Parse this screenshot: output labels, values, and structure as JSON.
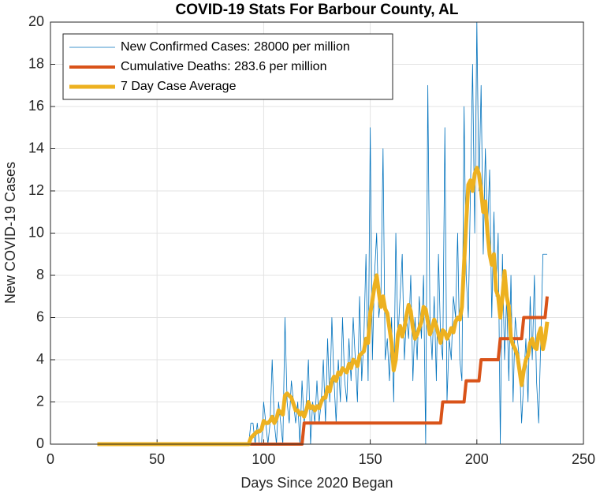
{
  "chart_data": {
    "type": "line",
    "title": "COVID-19 Stats For Barbour County, AL",
    "xlabel": "Days Since 2020 Began",
    "ylabel": "New COVID-19 Cases",
    "xlim": [
      0,
      250
    ],
    "xticks": [
      0,
      50,
      100,
      150,
      200,
      250
    ],
    "ylim": [
      0,
      20
    ],
    "yticks": [
      0,
      2,
      4,
      6,
      8,
      10,
      12,
      14,
      16,
      18,
      20
    ],
    "grid": true,
    "legend": "top-left",
    "x": [
      22,
      23,
      24,
      25,
      26,
      27,
      28,
      29,
      30,
      31,
      32,
      33,
      34,
      35,
      36,
      37,
      38,
      39,
      40,
      41,
      42,
      43,
      44,
      45,
      46,
      47,
      48,
      49,
      50,
      51,
      52,
      53,
      54,
      55,
      56,
      57,
      58,
      59,
      60,
      61,
      62,
      63,
      64,
      65,
      66,
      67,
      68,
      69,
      70,
      71,
      72,
      73,
      74,
      75,
      76,
      77,
      78,
      79,
      80,
      81,
      82,
      83,
      84,
      85,
      86,
      87,
      88,
      89,
      90,
      91,
      92,
      93,
      94,
      95,
      96,
      97,
      98,
      99,
      100,
      101,
      102,
      103,
      104,
      105,
      106,
      107,
      108,
      109,
      110,
      111,
      112,
      113,
      114,
      115,
      116,
      117,
      118,
      119,
      120,
      121,
      122,
      123,
      124,
      125,
      126,
      127,
      128,
      129,
      130,
      131,
      132,
      133,
      134,
      135,
      136,
      137,
      138,
      139,
      140,
      141,
      142,
      143,
      144,
      145,
      146,
      147,
      148,
      149,
      150,
      151,
      152,
      153,
      154,
      155,
      156,
      157,
      158,
      159,
      160,
      161,
      162,
      163,
      164,
      165,
      166,
      167,
      168,
      169,
      170,
      171,
      172,
      173,
      174,
      175,
      176,
      177,
      178,
      179,
      180,
      181,
      182,
      183,
      184,
      185,
      186,
      187,
      188,
      189,
      190,
      191,
      192,
      193,
      194,
      195,
      196,
      197,
      198,
      199,
      200,
      201,
      202,
      203,
      204,
      205,
      206,
      207,
      208,
      209,
      210,
      211,
      212,
      213,
      214,
      215,
      216,
      217,
      218,
      219,
      220,
      221,
      222,
      223,
      224,
      225,
      226,
      227,
      228,
      229,
      230,
      231,
      232,
      233
    ],
    "series": [
      {
        "name": "New Confirmed Cases: 28000 per million",
        "color": "#0072bd",
        "width": 0.8,
        "values": [
          0,
          0,
          0,
          0,
          0,
          0,
          0,
          0,
          0,
          0,
          0,
          0,
          0,
          0,
          0,
          0,
          0,
          0,
          0,
          0,
          0,
          0,
          0,
          0,
          0,
          0,
          0,
          0,
          0,
          0,
          0,
          0,
          0,
          0,
          0,
          0,
          0,
          0,
          0,
          0,
          0,
          0,
          0,
          0,
          0,
          0,
          0,
          0,
          0,
          0,
          0,
          0,
          0,
          0,
          0,
          0,
          0,
          0,
          0,
          0,
          0,
          0,
          0,
          0,
          0,
          0,
          0,
          0,
          0,
          0,
          0,
          0,
          1,
          1,
          0,
          1,
          0,
          0,
          2,
          1,
          0,
          1,
          4,
          1,
          0,
          2,
          1,
          0,
          6,
          2,
          1,
          3,
          2,
          1,
          2,
          0,
          3,
          1,
          2,
          4,
          0,
          2,
          1,
          3,
          1,
          2,
          4,
          1,
          5,
          2,
          6,
          3,
          1,
          4,
          2,
          6,
          3,
          2,
          5,
          3,
          6,
          4,
          2,
          7,
          3,
          5,
          9,
          3,
          15,
          4,
          8,
          10,
          6,
          7,
          14,
          4,
          5,
          3,
          6,
          2,
          10,
          5,
          7,
          9,
          4,
          6,
          5,
          8,
          3,
          6,
          4,
          7,
          5,
          8,
          0,
          17,
          6,
          4,
          7,
          3,
          9,
          5,
          4,
          15,
          2,
          5,
          4,
          7,
          6,
          10,
          4,
          3,
          16,
          8,
          6,
          12,
          18,
          10,
          20,
          12,
          17,
          9,
          14,
          10,
          13,
          6,
          11,
          7,
          10,
          0,
          9,
          4,
          7,
          3,
          8,
          2,
          6,
          5,
          4,
          1,
          3,
          5,
          2,
          7,
          4,
          8,
          3,
          1,
          5,
          9,
          9,
          9
        ]
      },
      {
        "name": "Cumulative Deaths: 283.6 per million",
        "color": "#d95319",
        "width": 4,
        "values": [
          0,
          0,
          0,
          0,
          0,
          0,
          0,
          0,
          0,
          0,
          0,
          0,
          0,
          0,
          0,
          0,
          0,
          0,
          0,
          0,
          0,
          0,
          0,
          0,
          0,
          0,
          0,
          0,
          0,
          0,
          0,
          0,
          0,
          0,
          0,
          0,
          0,
          0,
          0,
          0,
          0,
          0,
          0,
          0,
          0,
          0,
          0,
          0,
          0,
          0,
          0,
          0,
          0,
          0,
          0,
          0,
          0,
          0,
          0,
          0,
          0,
          0,
          0,
          0,
          0,
          0,
          0,
          0,
          0,
          0,
          0,
          0,
          0,
          0,
          0,
          0,
          0,
          0,
          0,
          0,
          0,
          0,
          0,
          0,
          0,
          0,
          0,
          0,
          0,
          0,
          0,
          0,
          0,
          0,
          0,
          0,
          0,
          1,
          1,
          1,
          1,
          1,
          1,
          1,
          1,
          1,
          1,
          1,
          1,
          1,
          1,
          1,
          1,
          1,
          1,
          1,
          1,
          1,
          1,
          1,
          1,
          1,
          1,
          1,
          1,
          1,
          1,
          1,
          1,
          1,
          1,
          1,
          1,
          1,
          1,
          1,
          1,
          1,
          1,
          1,
          1,
          1,
          1,
          1,
          1,
          1,
          1,
          1,
          1,
          1,
          1,
          1,
          1,
          1,
          1,
          1,
          1,
          1,
          1,
          1,
          1,
          1,
          2,
          2,
          2,
          2,
          2,
          2,
          2,
          2,
          2,
          2,
          2,
          3,
          3,
          3,
          3,
          3,
          3,
          3,
          4,
          4,
          4,
          4,
          4,
          4,
          4,
          4,
          4,
          5,
          5,
          5,
          5,
          5,
          5,
          5,
          5,
          5,
          5,
          5,
          6,
          6,
          6,
          6,
          6,
          6,
          6,
          6,
          6,
          6,
          6,
          7
        ]
      },
      {
        "name": "7 Day Case Average",
        "color": "#edb120",
        "width": 5,
        "values": [
          0,
          0,
          0,
          0,
          0,
          0,
          0,
          0,
          0,
          0,
          0,
          0,
          0,
          0,
          0,
          0,
          0,
          0,
          0,
          0,
          0,
          0,
          0,
          0,
          0,
          0,
          0,
          0,
          0,
          0,
          0,
          0,
          0,
          0,
          0,
          0,
          0,
          0,
          0,
          0,
          0,
          0,
          0,
          0,
          0,
          0,
          0,
          0,
          0,
          0,
          0,
          0,
          0,
          0,
          0,
          0,
          0,
          0,
          0,
          0,
          0,
          0,
          0,
          0,
          0,
          0,
          0,
          0,
          0,
          0,
          0,
          0,
          0.3,
          0.4,
          0.5,
          0.6,
          0.6,
          0.7,
          1.1,
          1.0,
          1.0,
          1.1,
          1.3,
          1.0,
          1.2,
          1.6,
          1.5,
          1.4,
          2.3,
          2.4,
          2.3,
          2.2,
          1.9,
          1.6,
          1.6,
          1.4,
          1.5,
          1.3,
          1.6,
          2.0,
          1.7,
          1.8,
          1.6,
          1.8,
          1.7,
          2.0,
          2.2,
          2.2,
          2.7,
          2.5,
          3.0,
          3.2,
          3.0,
          3.4,
          3.3,
          3.6,
          3.5,
          3.4,
          3.8,
          3.6,
          4.0,
          3.9,
          3.7,
          4.2,
          4.3,
          4.4,
          5.0,
          4.8,
          6.2,
          6.8,
          7.5,
          8.0,
          7.2,
          6.5,
          7.0,
          6.4,
          6.2,
          5.5,
          4.8,
          3.5,
          4.0,
          5.2,
          5.6,
          5.1,
          5.5,
          6.1,
          6.6,
          6.3,
          5.5,
          5.0,
          5.2,
          5.5,
          5.8,
          6.5,
          6.4,
          5.8,
          5.2,
          5.5,
          5.9,
          5.6,
          5.2,
          4.8,
          5.4,
          5.3,
          5.0,
          5.2,
          5.5,
          5.3,
          5.8,
          6.0,
          5.9,
          6.5,
          8.5,
          10.5,
          12.3,
          12.5,
          12.0,
          12.8,
          13.1,
          12.8,
          12.0,
          11.0,
          11.5,
          10.0,
          9.0,
          8.5,
          9.0,
          7.3,
          7.0,
          6.0,
          7.0,
          8.2,
          7.0,
          6.5,
          5.0,
          4.7,
          4.5,
          4.2,
          3.5,
          2.8,
          3.5,
          4.0,
          4.2,
          4.8,
          5.0,
          4.6,
          4.5,
          5.2,
          5.5,
          4.5,
          5.0,
          5.8
        ]
      }
    ]
  }
}
